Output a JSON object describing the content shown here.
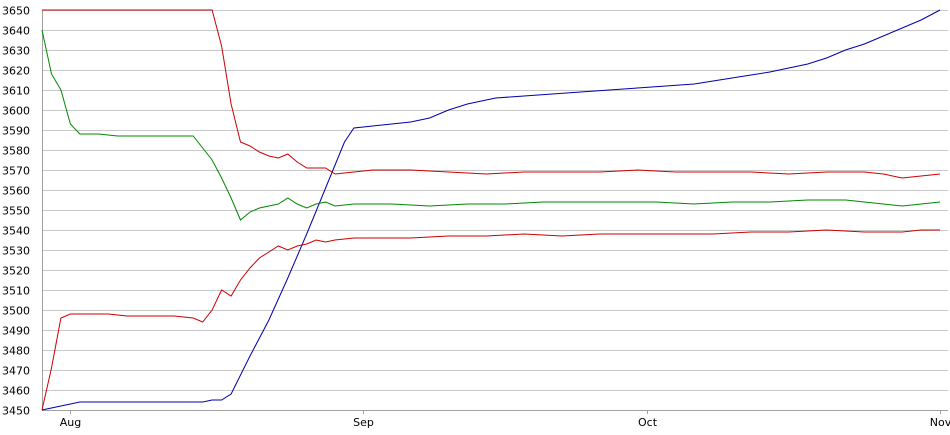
{
  "chart_data": {
    "type": "line",
    "title": "",
    "xlabel": "",
    "ylabel": "",
    "ylim": [
      3450,
      3650
    ],
    "y_ticks": [
      3450,
      3460,
      3470,
      3480,
      3490,
      3500,
      3510,
      3520,
      3530,
      3540,
      3550,
      3560,
      3570,
      3580,
      3590,
      3600,
      3610,
      3620,
      3630,
      3640,
      3650
    ],
    "x_domain": [
      "2019-07-29",
      "2019-11-01"
    ],
    "x_ticks": [
      {
        "date": "2019-08-01",
        "label": "Aug"
      },
      {
        "date": "2019-09-01",
        "label": "Sep"
      },
      {
        "date": "2019-10-01",
        "label": "Oct"
      },
      {
        "date": "2019-11-01",
        "label": "Nov"
      }
    ],
    "grid": true,
    "legend": "none",
    "series": [
      {
        "color": "#0000aa",
        "points": [
          [
            "2019-07-29",
            3450
          ],
          [
            "2019-07-31",
            3452
          ],
          [
            "2019-08-02",
            3454
          ],
          [
            "2019-08-05",
            3454
          ],
          [
            "2019-08-12",
            3454
          ],
          [
            "2019-08-15",
            3454
          ],
          [
            "2019-08-16",
            3455
          ],
          [
            "2019-08-17",
            3455
          ],
          [
            "2019-08-18",
            3458
          ],
          [
            "2019-08-20",
            3477
          ],
          [
            "2019-08-22",
            3495
          ],
          [
            "2019-08-24",
            3516
          ],
          [
            "2019-08-26",
            3538
          ],
          [
            "2019-08-28",
            3561
          ],
          [
            "2019-08-30",
            3584
          ],
          [
            "2019-08-31",
            3591
          ],
          [
            "2019-09-02",
            3592
          ],
          [
            "2019-09-04",
            3593
          ],
          [
            "2019-09-06",
            3594
          ],
          [
            "2019-09-08",
            3596
          ],
          [
            "2019-09-10",
            3600
          ],
          [
            "2019-09-12",
            3603
          ],
          [
            "2019-09-15",
            3606
          ],
          [
            "2019-09-18",
            3607
          ],
          [
            "2019-09-21",
            3608
          ],
          [
            "2019-09-24",
            3609
          ],
          [
            "2019-09-27",
            3610
          ],
          [
            "2019-09-30",
            3611
          ],
          [
            "2019-10-03",
            3612
          ],
          [
            "2019-10-06",
            3613
          ],
          [
            "2019-10-10",
            3616
          ],
          [
            "2019-10-14",
            3619
          ],
          [
            "2019-10-18",
            3623
          ],
          [
            "2019-10-20",
            3626
          ],
          [
            "2019-10-22",
            3630
          ],
          [
            "2019-10-24",
            3633
          ],
          [
            "2019-10-26",
            3637
          ],
          [
            "2019-10-28",
            3641
          ],
          [
            "2019-10-29",
            3643
          ],
          [
            "2019-10-30",
            3645
          ],
          [
            "2019-11-01",
            3650
          ]
        ]
      },
      {
        "color": "#cc0000",
        "points": [
          [
            "2019-07-29",
            3650
          ],
          [
            "2019-08-05",
            3650
          ],
          [
            "2019-08-10",
            3650
          ],
          [
            "2019-08-14",
            3650
          ],
          [
            "2019-08-16",
            3650
          ],
          [
            "2019-08-17",
            3632
          ],
          [
            "2019-08-18",
            3603
          ],
          [
            "2019-08-19",
            3584
          ],
          [
            "2019-08-20",
            3582
          ],
          [
            "2019-08-21",
            3579
          ],
          [
            "2019-08-22",
            3577
          ],
          [
            "2019-08-23",
            3576
          ],
          [
            "2019-08-24",
            3578
          ],
          [
            "2019-08-25",
            3574
          ],
          [
            "2019-08-26",
            3571
          ],
          [
            "2019-08-27",
            3571
          ],
          [
            "2019-08-28",
            3571
          ],
          [
            "2019-08-29",
            3568
          ],
          [
            "2019-08-31",
            3569
          ],
          [
            "2019-09-02",
            3570
          ],
          [
            "2019-09-06",
            3570
          ],
          [
            "2019-09-10",
            3569
          ],
          [
            "2019-09-14",
            3568
          ],
          [
            "2019-09-18",
            3569
          ],
          [
            "2019-09-22",
            3569
          ],
          [
            "2019-09-26",
            3569
          ],
          [
            "2019-09-30",
            3570
          ],
          [
            "2019-10-04",
            3569
          ],
          [
            "2019-10-08",
            3569
          ],
          [
            "2019-10-12",
            3569
          ],
          [
            "2019-10-16",
            3568
          ],
          [
            "2019-10-20",
            3569
          ],
          [
            "2019-10-24",
            3569
          ],
          [
            "2019-10-26",
            3568
          ],
          [
            "2019-10-28",
            3566
          ],
          [
            "2019-10-30",
            3567
          ],
          [
            "2019-11-01",
            3568
          ]
        ]
      },
      {
        "color": "#008800",
        "points": [
          [
            "2019-07-29",
            3640
          ],
          [
            "2019-07-30",
            3618
          ],
          [
            "2019-07-31",
            3610
          ],
          [
            "2019-08-01",
            3593
          ],
          [
            "2019-08-02",
            3588
          ],
          [
            "2019-08-04",
            3588
          ],
          [
            "2019-08-06",
            3587
          ],
          [
            "2019-08-10",
            3587
          ],
          [
            "2019-08-12",
            3587
          ],
          [
            "2019-08-14",
            3587
          ],
          [
            "2019-08-15",
            3581
          ],
          [
            "2019-08-16",
            3575
          ],
          [
            "2019-08-17",
            3566
          ],
          [
            "2019-08-18",
            3556
          ],
          [
            "2019-08-19",
            3545
          ],
          [
            "2019-08-20",
            3549
          ],
          [
            "2019-08-21",
            3551
          ],
          [
            "2019-08-23",
            3553
          ],
          [
            "2019-08-24",
            3556
          ],
          [
            "2019-08-25",
            3553
          ],
          [
            "2019-08-26",
            3551
          ],
          [
            "2019-08-27",
            3553
          ],
          [
            "2019-08-28",
            3554
          ],
          [
            "2019-08-29",
            3552
          ],
          [
            "2019-08-31",
            3553
          ],
          [
            "2019-09-04",
            3553
          ],
          [
            "2019-09-08",
            3552
          ],
          [
            "2019-09-12",
            3553
          ],
          [
            "2019-09-16",
            3553
          ],
          [
            "2019-09-20",
            3554
          ],
          [
            "2019-09-24",
            3554
          ],
          [
            "2019-09-28",
            3554
          ],
          [
            "2019-10-02",
            3554
          ],
          [
            "2019-10-06",
            3553
          ],
          [
            "2019-10-10",
            3554
          ],
          [
            "2019-10-14",
            3554
          ],
          [
            "2019-10-18",
            3555
          ],
          [
            "2019-10-22",
            3555
          ],
          [
            "2019-10-26",
            3553
          ],
          [
            "2019-10-28",
            3552
          ],
          [
            "2019-10-30",
            3553
          ],
          [
            "2019-11-01",
            3554
          ]
        ]
      },
      {
        "color": "#cc0000",
        "points": [
          [
            "2019-07-29",
            3450
          ],
          [
            "2019-07-30",
            3471
          ],
          [
            "2019-07-31",
            3496
          ],
          [
            "2019-08-01",
            3498
          ],
          [
            "2019-08-05",
            3498
          ],
          [
            "2019-08-07",
            3497
          ],
          [
            "2019-08-12",
            3497
          ],
          [
            "2019-08-14",
            3496
          ],
          [
            "2019-08-15",
            3494
          ],
          [
            "2019-08-16",
            3500
          ],
          [
            "2019-08-17",
            3510
          ],
          [
            "2019-08-18",
            3507
          ],
          [
            "2019-08-19",
            3515
          ],
          [
            "2019-08-20",
            3521
          ],
          [
            "2019-08-21",
            3526
          ],
          [
            "2019-08-22",
            3529
          ],
          [
            "2019-08-23",
            3532
          ],
          [
            "2019-08-24",
            3530
          ],
          [
            "2019-08-25",
            3532
          ],
          [
            "2019-08-26",
            3533
          ],
          [
            "2019-08-27",
            3535
          ],
          [
            "2019-08-28",
            3534
          ],
          [
            "2019-08-29",
            3535
          ],
          [
            "2019-08-31",
            3536
          ],
          [
            "2019-09-03",
            3536
          ],
          [
            "2019-09-06",
            3536
          ],
          [
            "2019-09-10",
            3537
          ],
          [
            "2019-09-14",
            3537
          ],
          [
            "2019-09-18",
            3538
          ],
          [
            "2019-09-22",
            3537
          ],
          [
            "2019-09-26",
            3538
          ],
          [
            "2019-09-30",
            3538
          ],
          [
            "2019-10-04",
            3538
          ],
          [
            "2019-10-08",
            3538
          ],
          [
            "2019-10-12",
            3539
          ],
          [
            "2019-10-16",
            3539
          ],
          [
            "2019-10-20",
            3540
          ],
          [
            "2019-10-24",
            3539
          ],
          [
            "2019-10-28",
            3539
          ],
          [
            "2019-10-30",
            3540
          ],
          [
            "2019-11-01",
            3540
          ]
        ]
      }
    ]
  }
}
